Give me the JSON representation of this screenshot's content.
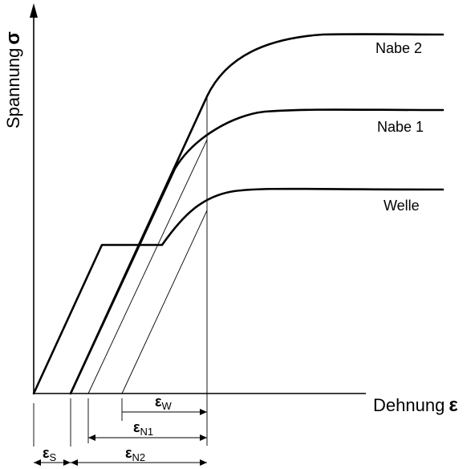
{
  "axes": {
    "y_label": "Spannung",
    "y_symbol": "σ",
    "x_label": "Dehnung",
    "x_symbol": "ε"
  },
  "curves": [
    {
      "name": "Nabe 2"
    },
    {
      "name": "Nabe 1"
    },
    {
      "name": "Welle"
    }
  ],
  "dimensions": [
    {
      "symbol": "ε",
      "sub": "W"
    },
    {
      "symbol": "ε",
      "sub": "N1"
    },
    {
      "symbol": "ε",
      "sub": "N2"
    },
    {
      "symbol": "ε",
      "sub": "S"
    }
  ]
}
